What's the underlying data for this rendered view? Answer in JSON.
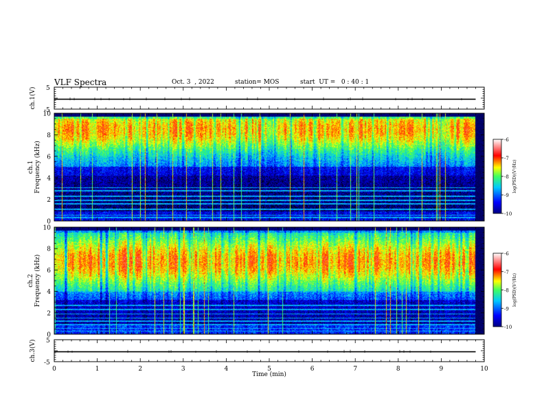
{
  "header": {
    "title": "VLF Spectra",
    "date": "Oct. 3  , 2022",
    "station": "station= MOS",
    "start": "start  UT =   0 : 40 : 1"
  },
  "chart_data": [
    {
      "type": "line",
      "panel": "ch1-voltage",
      "ylabel": "ch.1(V)",
      "yticks": [
        "5",
        "-5"
      ],
      "ylim": [
        -5,
        5
      ],
      "xlim": [
        0,
        10
      ],
      "x": [
        0,
        9.8
      ],
      "values": [
        -0.5,
        -0.5
      ],
      "trace_end": 9.8
    },
    {
      "type": "heatmap",
      "panel": "ch1-spectrogram",
      "ylabel_line1": "ch.1",
      "ylabel_line2": "Frequency (kHz)",
      "yticks": [
        "0",
        "2",
        "4",
        "6",
        "8",
        "10"
      ],
      "ylim": [
        0,
        10
      ],
      "xlim": [
        0,
        10
      ],
      "data_end": 9.8,
      "colorbar": {
        "label": "log(PSD)(V²/Hz)",
        "ticks": [
          "-6",
          "-7",
          "-8",
          "-9",
          "-10"
        ],
        "range": [
          -10,
          -6
        ]
      },
      "intense_band_khz": [
        5,
        9.5
      ],
      "peak_khz": 8.5,
      "tone_lines_khz": [
        0.3,
        0.55,
        1.1,
        1.6,
        1.9,
        2.3,
        2.8,
        3.1
      ]
    },
    {
      "type": "heatmap",
      "panel": "ch2-spectrogram",
      "ylabel_line1": "ch.2",
      "ylabel_line2": "Frequency (kHz)",
      "yticks": [
        "0",
        "2",
        "4",
        "6",
        "8",
        "10"
      ],
      "ylim": [
        0,
        10
      ],
      "xlim": [
        0,
        10
      ],
      "data_end": 9.8,
      "colorbar": {
        "label": "log(PSD)(V²/Hz)",
        "ticks": [
          "-6",
          "-7",
          "-8",
          "-9",
          "-10"
        ],
        "range": [
          -10,
          -6
        ]
      },
      "intense_band_khz": [
        4,
        9.5
      ],
      "peak_khz": 6.8,
      "tone_lines_khz": [
        0.3,
        0.55,
        0.9,
        1.2,
        1.5,
        1.9,
        2.3,
        2.7
      ]
    },
    {
      "type": "line",
      "panel": "ch3-voltage",
      "ylabel": "ch.3(V)",
      "yticks": [
        "5",
        "-5"
      ],
      "ylim": [
        -5,
        5
      ],
      "xlim": [
        0,
        10
      ],
      "x": [
        0,
        9.8
      ],
      "values": [
        -0.5,
        -0.5
      ],
      "trace_end": 9.8,
      "xlabel": "Time (min)",
      "xticks": [
        "0",
        "1",
        "2",
        "3",
        "4",
        "5",
        "6",
        "7",
        "8",
        "9",
        "10"
      ]
    }
  ],
  "colors": {
    "low": "#00007a",
    "mid_blue": "#1a5aff",
    "cyan": "#00e0ff",
    "green": "#40ff40",
    "yellow": "#ffe000",
    "red": "#ff2000",
    "high": "#ffffff"
  }
}
